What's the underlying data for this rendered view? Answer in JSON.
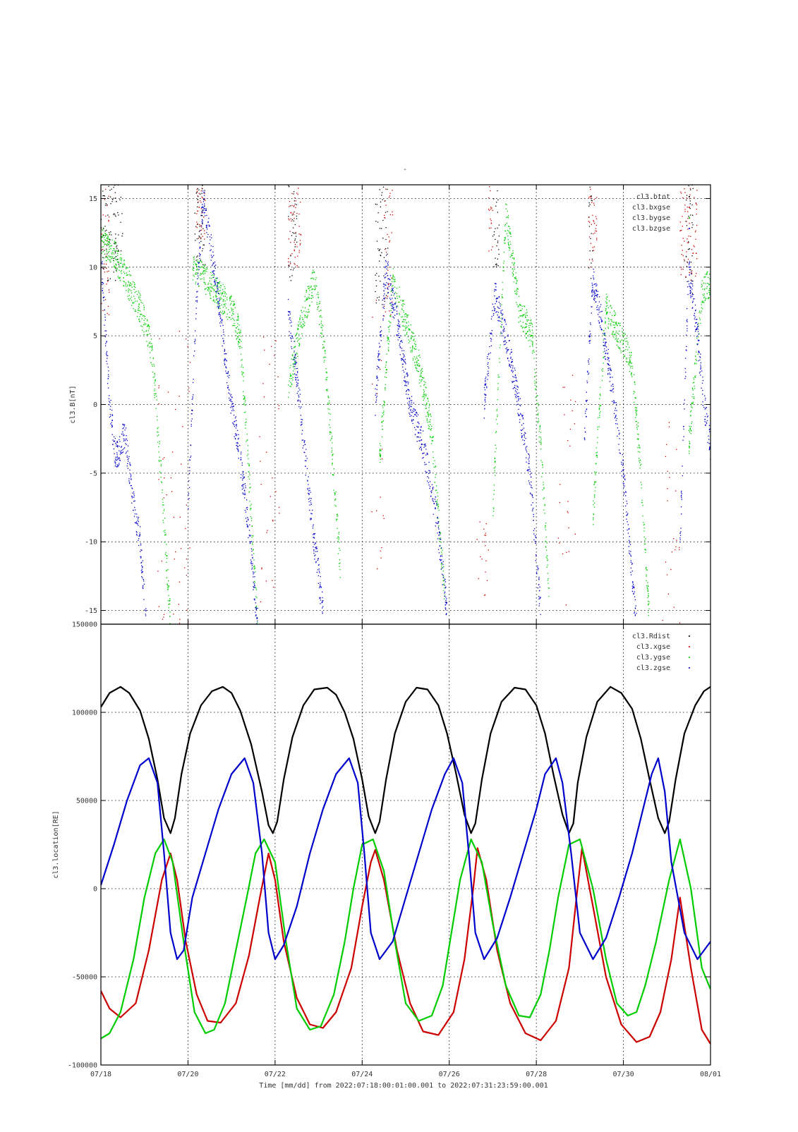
{
  "figure": {
    "title": "-",
    "time_axis": {
      "label": "Time [mm/dd]  from 2022:07:18:00:01:00.001  to  2022:07:31:23:59:00.001",
      "range_days": [
        0,
        14
      ],
      "tick_days": [
        0,
        2,
        4,
        6,
        8,
        10,
        12,
        14
      ],
      "tick_labels": [
        "07/18",
        "07/20",
        "07/22",
        "07/24",
        "07/26",
        "07/28",
        "07/30",
        "08/01"
      ]
    }
  },
  "chart_data": [
    {
      "type": "scatter",
      "panel": "top",
      "ylabel": "cl3.B[nT]",
      "ylim": [
        -16,
        16
      ],
      "y_ticks": [
        -15,
        -10,
        -5,
        0,
        5,
        10,
        15
      ],
      "y_tick_labels": [
        "-15",
        "-10",
        "-5",
        "0",
        "5",
        "10",
        "15"
      ],
      "grid": true,
      "legend_position": "top-right",
      "series": [
        {
          "name": "cl3.btot",
          "color": "#000000",
          "bursts": [
            [
              0.0,
              0.5,
              9,
              16
            ],
            [
              2.15,
              2.4,
              10,
              16
            ],
            [
              4.3,
              4.5,
              9,
              16
            ],
            [
              6.3,
              6.6,
              7,
              16
            ],
            [
              9.0,
              9.15,
              10,
              16
            ],
            [
              11.2,
              11.3,
              9,
              16
            ],
            [
              13.4,
              13.6,
              8,
              16
            ]
          ]
        },
        {
          "name": "cl3.bxgse",
          "color": "#cc0000",
          "bursts": [
            [
              0.0,
              0.2,
              6,
              16
            ],
            [
              2.2,
              2.4,
              12,
              16
            ],
            [
              4.3,
              4.6,
              10,
              16
            ],
            [
              6.5,
              6.7,
              6,
              16
            ],
            [
              8.9,
              9.0,
              11,
              16
            ],
            [
              11.2,
              11.4,
              10,
              16
            ],
            [
              13.3,
              13.7,
              9,
              16
            ]
          ],
          "sparse": [
            [
              1.3,
              2.1,
              -16,
              6
            ],
            [
              3.6,
              4.1,
              -15,
              5
            ],
            [
              6.2,
              6.5,
              -12,
              10
            ],
            [
              8.6,
              8.9,
              -14,
              -8
            ],
            [
              10.5,
              10.9,
              -16,
              4
            ],
            [
              12.9,
              13.3,
              -16,
              0
            ]
          ]
        },
        {
          "name": "cl3.bygse",
          "color": "#00cc00",
          "traces": [
            {
              "d": [
                0.0,
                0.3,
                0.6,
                0.9,
                1.1,
                1.2
              ],
              "v": [
                12,
                11,
                9,
                7,
                5,
                3
              ]
            },
            {
              "d": [
                1.2,
                1.4,
                1.6
              ],
              "v": [
                3,
                -6,
                -16
              ]
            },
            {
              "d": [
                2.1,
                2.4,
                2.7,
                3.0,
                3.2
              ],
              "v": [
                10,
                9,
                8,
                7,
                5
              ]
            },
            {
              "d": [
                3.2,
                3.4,
                3.6
              ],
              "v": [
                5,
                -5,
                -16
              ]
            },
            {
              "d": [
                4.3,
                4.6,
                4.9,
                5.1
              ],
              "v": [
                1,
                6,
                9,
                5
              ]
            },
            {
              "d": [
                5.1,
                5.3,
                5.5
              ],
              "v": [
                5,
                -3,
                -12
              ]
            },
            {
              "d": [
                6.4,
                6.7,
                7.0,
                7.3
              ],
              "v": [
                -4,
                9,
                6,
                3
              ]
            },
            {
              "d": [
                7.3,
                7.6,
                7.9
              ],
              "v": [
                3,
                -2,
                -14
              ]
            },
            {
              "d": [
                9.0,
                9.3,
                9.6,
                9.9
              ],
              "v": [
                -8,
                14,
                7,
                5
              ]
            },
            {
              "d": [
                9.9,
                10.1,
                10.3
              ],
              "v": [
                5,
                -3,
                -14
              ]
            },
            {
              "d": [
                11.3,
                11.6,
                11.9,
                12.2
              ],
              "v": [
                -8,
                7,
                5,
                3
              ]
            },
            {
              "d": [
                12.2,
                12.4,
                12.6
              ],
              "v": [
                3,
                -5,
                -16
              ]
            },
            {
              "d": [
                13.5,
                13.8,
                14.0
              ],
              "v": [
                -3,
                8,
                9
              ]
            }
          ]
        },
        {
          "name": "cl3.bzgse",
          "color": "#0000cc",
          "traces": [
            {
              "d": [
                0.0,
                0.2,
                0.35,
                0.55,
                0.7,
                0.9,
                1.05
              ],
              "v": [
                11,
                0,
                -4,
                -2,
                -6,
                -10,
                -16
              ]
            },
            {
              "d": [
                2.0,
                2.2,
                2.35,
                2.6,
                2.8,
                3.0,
                3.2,
                3.4,
                3.6
              ],
              "v": [
                -8,
                8,
                15,
                10,
                5,
                0,
                -4,
                -9,
                -16
              ]
            },
            {
              "d": [
                4.3,
                4.5,
                4.7,
                4.9,
                5.1
              ],
              "v": [
                7,
                2,
                -4,
                -10,
                -15
              ]
            },
            {
              "d": [
                6.3,
                6.55,
                6.8,
                7.1,
                7.4,
                7.7,
                7.95
              ],
              "v": [
                0,
                10,
                6,
                0,
                -3,
                -8,
                -15
              ]
            },
            {
              "d": [
                8.8,
                9.05,
                9.3,
                9.6,
                9.85,
                10.1
              ],
              "v": [
                0,
                8,
                5,
                0,
                -5,
                -15
              ]
            },
            {
              "d": [
                11.1,
                11.3,
                11.5,
                11.8,
                12.0,
                12.3
              ],
              "v": [
                -3,
                9,
                6,
                0,
                -5,
                -16
              ]
            },
            {
              "d": [
                13.3,
                13.5,
                13.7,
                13.85,
                14.0
              ],
              "v": [
                -10,
                10,
                5,
                0,
                -3
              ]
            }
          ]
        }
      ]
    },
    {
      "type": "line",
      "panel": "bottom",
      "ylabel": "cl3.location[RE]",
      "ylim": [
        -100000,
        150000
      ],
      "y_ticks": [
        -100000,
        -50000,
        0,
        50000,
        100000,
        150000
      ],
      "y_tick_labels": [
        "-100000",
        "-50000",
        "0",
        "50000",
        "100000",
        "150000"
      ],
      "grid": true,
      "legend_position": "top-right",
      "series": [
        {
          "name": "cl3.Rdist",
          "color": "#000000",
          "x": [
            0.0,
            0.2,
            0.45,
            0.65,
            0.9,
            1.1,
            1.3,
            1.45,
            1.6,
            1.7,
            1.85,
            2.05,
            2.3,
            2.55,
            2.8,
            3.0,
            3.2,
            3.45,
            3.7,
            3.85,
            3.95,
            4.05,
            4.2,
            4.4,
            4.65,
            4.9,
            5.2,
            5.4,
            5.6,
            5.8,
            6.0,
            6.15,
            6.3,
            6.4,
            6.55,
            6.75,
            7.0,
            7.25,
            7.5,
            7.75,
            7.95,
            8.15,
            8.35,
            8.5,
            8.6,
            8.75,
            8.95,
            9.2,
            9.5,
            9.75,
            10.0,
            10.2,
            10.4,
            10.6,
            10.75,
            10.85,
            10.95,
            11.15,
            11.4,
            11.7,
            11.95,
            12.2,
            12.4,
            12.6,
            12.8,
            12.95,
            13.05,
            13.2,
            13.4,
            13.65,
            13.85,
            14.0
          ],
          "y": [
            103000,
            111000,
            114500,
            111000,
            101000,
            85000,
            62000,
            40000,
            31500,
            40000,
            65000,
            88000,
            104000,
            112000,
            114500,
            111000,
            101000,
            82000,
            55000,
            36000,
            31500,
            38000,
            62000,
            86000,
            104000,
            113000,
            114000,
            110000,
            100000,
            85000,
            62000,
            41000,
            31500,
            38000,
            62000,
            88000,
            106000,
            114000,
            113000,
            104000,
            88000,
            66000,
            42000,
            31500,
            37000,
            62000,
            88000,
            106000,
            114000,
            113000,
            104000,
            88000,
            64000,
            42000,
            31500,
            37000,
            60000,
            86000,
            106000,
            114500,
            111000,
            102000,
            85000,
            62000,
            40000,
            31500,
            38000,
            62000,
            88000,
            104000,
            112000,
            114500
          ]
        },
        {
          "name": "cl3.xgse",
          "color": "#cc0000",
          "x": [
            0.0,
            0.2,
            0.45,
            0.8,
            1.1,
            1.4,
            1.6,
            1.75,
            1.95,
            2.2,
            2.45,
            2.75,
            3.1,
            3.4,
            3.65,
            3.85,
            4.0,
            4.2,
            4.5,
            4.8,
            5.1,
            5.4,
            5.75,
            6.0,
            6.2,
            6.3,
            6.5,
            6.8,
            7.1,
            7.4,
            7.75,
            8.1,
            8.35,
            8.55,
            8.65,
            8.85,
            9.1,
            9.4,
            9.75,
            10.1,
            10.45,
            10.75,
            10.9,
            11.05,
            11.3,
            11.6,
            11.95,
            12.3,
            12.6,
            12.85,
            13.1,
            13.3,
            13.55,
            13.8,
            14.0
          ],
          "y": [
            -58000,
            -68000,
            -73000,
            -65000,
            -35000,
            5000,
            20000,
            5000,
            -30000,
            -60000,
            -75000,
            -76000,
            -65000,
            -38000,
            -5000,
            20000,
            5000,
            -30000,
            -62000,
            -77000,
            -79000,
            -70000,
            -45000,
            -10000,
            15000,
            22000,
            5000,
            -35000,
            -65000,
            -81000,
            -83000,
            -70000,
            -40000,
            0,
            23000,
            5000,
            -35000,
            -65000,
            -82000,
            -86000,
            -75000,
            -45000,
            -10000,
            23000,
            -10000,
            -50000,
            -77000,
            -87000,
            -84000,
            -70000,
            -40000,
            -5000,
            -45000,
            -80000,
            -88000
          ]
        },
        {
          "name": "cl3.ygse",
          "color": "#00cc00",
          "x": [
            0.0,
            0.2,
            0.45,
            0.75,
            1.0,
            1.25,
            1.45,
            1.65,
            1.9,
            2.15,
            2.4,
            2.6,
            2.85,
            3.1,
            3.35,
            3.55,
            3.75,
            4.0,
            4.25,
            4.5,
            4.8,
            5.05,
            5.35,
            5.6,
            5.8,
            6.0,
            6.25,
            6.5,
            6.75,
            7.0,
            7.3,
            7.6,
            7.85,
            8.05,
            8.25,
            8.5,
            8.75,
            9.0,
            9.3,
            9.6,
            9.85,
            10.1,
            10.3,
            10.5,
            10.75,
            11.0,
            11.3,
            11.6,
            11.85,
            12.1,
            12.3,
            12.5,
            12.75,
            13.05,
            13.3,
            13.55,
            13.8,
            14.0
          ],
          "y": [
            -85000,
            -82000,
            -70000,
            -40000,
            -5000,
            20000,
            28000,
            15000,
            -30000,
            -70000,
            -82000,
            -80000,
            -65000,
            -35000,
            -5000,
            20000,
            28000,
            15000,
            -30000,
            -68000,
            -80000,
            -78000,
            -60000,
            -30000,
            0,
            25000,
            28000,
            10000,
            -30000,
            -65000,
            -75000,
            -72000,
            -55000,
            -25000,
            5000,
            28000,
            15000,
            -20000,
            -55000,
            -72000,
            -73000,
            -60000,
            -35000,
            -5000,
            25000,
            28000,
            0,
            -40000,
            -65000,
            -72000,
            -70000,
            -55000,
            -30000,
            5000,
            28000,
            0,
            -45000,
            -57000
          ]
        },
        {
          "name": "cl3.zgse",
          "color": "#0000cc",
          "x": [
            0.0,
            0.3,
            0.6,
            0.9,
            1.1,
            1.3,
            1.45,
            1.6,
            1.75,
            1.9,
            2.1,
            2.4,
            2.7,
            3.0,
            3.3,
            3.5,
            3.7,
            3.85,
            4.0,
            4.2,
            4.5,
            4.8,
            5.1,
            5.4,
            5.7,
            5.9,
            6.05,
            6.2,
            6.4,
            6.7,
            7.0,
            7.3,
            7.6,
            7.9,
            8.1,
            8.3,
            8.45,
            8.6,
            8.8,
            9.1,
            9.4,
            9.7,
            10.0,
            10.2,
            10.45,
            10.6,
            10.8,
            11.0,
            11.3,
            11.6,
            11.9,
            12.2,
            12.45,
            12.65,
            12.8,
            12.95,
            13.1,
            13.4,
            13.7,
            14.0
          ],
          "y": [
            2000,
            25000,
            50000,
            70000,
            74000,
            60000,
            20000,
            -25000,
            -40000,
            -35000,
            -5000,
            20000,
            45000,
            65000,
            74000,
            60000,
            20000,
            -25000,
            -40000,
            -32000,
            -10000,
            20000,
            45000,
            65000,
            74000,
            60000,
            20000,
            -25000,
            -40000,
            -30000,
            -5000,
            20000,
            45000,
            65000,
            74000,
            60000,
            20000,
            -25000,
            -40000,
            -28000,
            -5000,
            20000,
            45000,
            65000,
            74000,
            60000,
            20000,
            -25000,
            -40000,
            -28000,
            -5000,
            20000,
            45000,
            65000,
            74000,
            55000,
            15000,
            -25000,
            -40000,
            -30000
          ]
        }
      ]
    }
  ]
}
